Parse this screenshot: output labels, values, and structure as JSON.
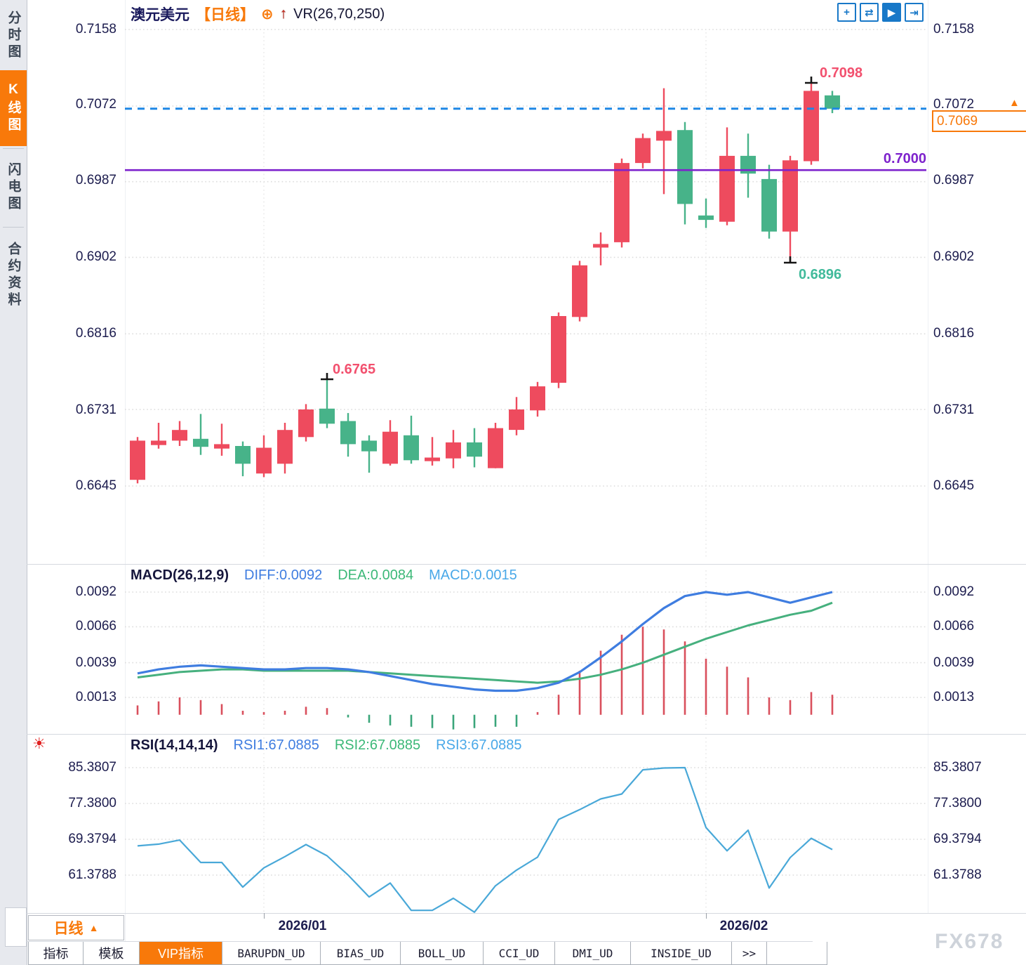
{
  "header": {
    "symbol": "澳元美元",
    "period_tag": "【日线】",
    "plus_glyph": "⊕",
    "arrow_glyph": "↑",
    "indicator": "VR(26,70,250)"
  },
  "toolbar": {
    "buttons": [
      {
        "name": "pan-crosshair",
        "glyph": "+"
      },
      {
        "name": "compress-axis",
        "glyph": "⇄"
      },
      {
        "name": "auto-play-scale",
        "glyph": "▶"
      },
      {
        "name": "shift-right",
        "glyph": "⇥"
      }
    ]
  },
  "sidebar": {
    "tabs": [
      {
        "label": "分时图",
        "active": false
      },
      {
        "label": "K线图",
        "active": true
      },
      {
        "label": "闪电图",
        "active": false
      },
      {
        "label": "合约资料",
        "active": false
      }
    ]
  },
  "main_chart": {
    "y_axis_labels": [
      "0.7158",
      "0.7072",
      "0.6987",
      "0.6902",
      "0.6816",
      "0.6731",
      "0.6645"
    ],
    "annotations": {
      "marked_high": "0.7098",
      "marked_low": "0.6896",
      "swing_high": "0.6765",
      "hline_label": "0.7000"
    },
    "price_box": {
      "value": "0.7069",
      "arrow": "▲"
    }
  },
  "macd_panel": {
    "title": "MACD(26,12,9)",
    "diff_label": "DIFF:0.0092",
    "dea_label": "DEA:0.0084",
    "macd_label": "MACD:0.0015",
    "y_axis_labels": [
      "0.0092",
      "0.0066",
      "0.0039",
      "0.0013"
    ]
  },
  "rsi_panel": {
    "icon_glyph": "☀",
    "title": "RSI(14,14,14)",
    "rsi1_label": "RSI1:67.0885",
    "rsi2_label": "RSI2:67.0885",
    "rsi3_label": "RSI3:67.0885",
    "y_axis_labels": [
      "85.3807",
      "77.3800",
      "69.3794",
      "61.3788"
    ]
  },
  "x_axis": {
    "period_label": "日线",
    "period_arrow": "▲",
    "labels": [
      "2026/01",
      "2026/02"
    ]
  },
  "bottom_tabs": {
    "tabs": [
      "指标",
      "模板",
      "VIP指标",
      "BARUPDN_UD",
      "BIAS_UD",
      "BOLL_UD",
      "CCI_UD",
      "DMI_UD",
      "INSIDE_UD"
    ],
    "more": ">>"
  },
  "watermark": {
    "text": "FX678"
  },
  "colors": {
    "up_candle": "#ee4b5e",
    "down_candle": "#47b389",
    "accent_orange": "#f8790a",
    "toolbar_blue": "#1878c8",
    "current_price_dash": "#1e87e5",
    "support_line_purple": "#7d22cc",
    "diff_line": "#3f7de0",
    "dea_line": "#46b07e",
    "rsi_line": "#49a8d8",
    "grid": "#dcdcdc",
    "axis_text": "#1c1c4e"
  },
  "chart_data": [
    {
      "type": "candlestick",
      "title": "澳元美元 日线 (AUD/USD daily)",
      "y_ticks": [
        0.7158,
        0.7072,
        0.6987,
        0.6902,
        0.6816,
        0.6731,
        0.6645
      ],
      "x_labels": [
        "2026/01",
        "2026/02"
      ],
      "month_boundary_indices": [
        6,
        27
      ],
      "current_price": 0.7069,
      "support_line": 0.7,
      "marked_high": {
        "index": 32,
        "value": 0.7098
      },
      "marked_low": {
        "index": 31,
        "value": 0.6896
      },
      "marked_swing_high": {
        "index": 9,
        "value": 0.6765
      },
      "ohlc": [
        [
          0.6652,
          0.67,
          0.6648,
          0.6696
        ],
        [
          0.6691,
          0.6716,
          0.6687,
          0.6696
        ],
        [
          0.6696,
          0.6718,
          0.669,
          0.6708
        ],
        [
          0.6698,
          0.6726,
          0.668,
          0.6689
        ],
        [
          0.6687,
          0.6715,
          0.6679,
          0.6692
        ],
        [
          0.669,
          0.6695,
          0.6656,
          0.667
        ],
        [
          0.6659,
          0.6702,
          0.6655,
          0.6688
        ],
        [
          0.667,
          0.6716,
          0.6659,
          0.6708
        ],
        [
          0.67,
          0.6737,
          0.6695,
          0.6731
        ],
        [
          0.6732,
          0.6765,
          0.671,
          0.6715
        ],
        [
          0.6718,
          0.6727,
          0.6678,
          0.6692
        ],
        [
          0.6696,
          0.6702,
          0.666,
          0.6684
        ],
        [
          0.667,
          0.6719,
          0.6668,
          0.6706
        ],
        [
          0.6702,
          0.6724,
          0.667,
          0.6674
        ],
        [
          0.6673,
          0.67,
          0.6668,
          0.6677
        ],
        [
          0.6676,
          0.6708,
          0.6665,
          0.6694
        ],
        [
          0.6694,
          0.671,
          0.6666,
          0.6678
        ],
        [
          0.6665,
          0.6716,
          0.6665,
          0.671
        ],
        [
          0.6708,
          0.6745,
          0.6702,
          0.6731
        ],
        [
          0.673,
          0.6762,
          0.6723,
          0.6757
        ],
        [
          0.6761,
          0.684,
          0.6755,
          0.6836
        ],
        [
          0.6835,
          0.6898,
          0.683,
          0.6893
        ],
        [
          0.6913,
          0.693,
          0.6893,
          0.6917
        ],
        [
          0.6919,
          0.7013,
          0.6913,
          0.7008
        ],
        [
          0.7008,
          0.7041,
          0.7002,
          0.7036
        ],
        [
          0.7033,
          0.7092,
          0.6973,
          0.7044
        ],
        [
          0.7045,
          0.7054,
          0.6939,
          0.6962
        ],
        [
          0.6949,
          0.6968,
          0.6935,
          0.6944
        ],
        [
          0.6942,
          0.7048,
          0.6938,
          0.7016
        ],
        [
          0.7016,
          0.7041,
          0.6969,
          0.6996
        ],
        [
          0.699,
          0.7006,
          0.6923,
          0.6931
        ],
        [
          0.6931,
          0.7016,
          0.6896,
          0.7011
        ],
        [
          0.701,
          0.7098,
          0.7006,
          0.7089
        ],
        [
          0.7084,
          0.7089,
          0.7064,
          0.7069
        ]
      ]
    },
    {
      "type": "macd",
      "title": "MACD(26,12,9)",
      "y_ticks": [
        0.0092,
        0.0066,
        0.0039,
        0.0013
      ],
      "diff": [
        0.0031,
        0.0034,
        0.0036,
        0.0037,
        0.0036,
        0.0035,
        0.0034,
        0.0034,
        0.0035,
        0.0035,
        0.0034,
        0.0032,
        0.0029,
        0.0026,
        0.0023,
        0.0021,
        0.0019,
        0.0018,
        0.0018,
        0.002,
        0.0024,
        0.0032,
        0.0043,
        0.0055,
        0.0068,
        0.008,
        0.0089,
        0.0092,
        0.009,
        0.0092,
        0.0088,
        0.0084,
        0.0088,
        0.0092
      ],
      "dea": [
        0.0028,
        0.003,
        0.0032,
        0.0033,
        0.0034,
        0.0034,
        0.0033,
        0.0033,
        0.0033,
        0.0033,
        0.0033,
        0.0032,
        0.0031,
        0.003,
        0.0029,
        0.0028,
        0.0027,
        0.0026,
        0.0025,
        0.0024,
        0.0025,
        0.0027,
        0.003,
        0.0034,
        0.0039,
        0.0045,
        0.0051,
        0.0057,
        0.0062,
        0.0067,
        0.0071,
        0.0075,
        0.0078,
        0.0084
      ],
      "hist": [
        0.0007,
        0.001,
        0.0013,
        0.0011,
        0.0008,
        0.0003,
        0.0002,
        0.0003,
        0.0006,
        0.0005,
        -0.0002,
        -0.0006,
        -0.0008,
        -0.0009,
        -0.001,
        -0.0011,
        -0.001,
        -0.0009,
        -0.0009,
        0.0002,
        0.0015,
        0.0033,
        0.0048,
        0.006,
        0.0066,
        0.0064,
        0.0055,
        0.0042,
        0.0036,
        0.0028,
        0.0013,
        0.0011,
        0.0017,
        0.0015
      ]
    },
    {
      "type": "line",
      "title": "RSI(14,14,14)",
      "y_ticks": [
        85.3807,
        77.38,
        69.3794,
        61.3788
      ],
      "rsi": [
        67.9,
        68.3,
        69.2,
        64.2,
        64.2,
        58.7,
        63.0,
        65.5,
        68.2,
        65.7,
        61.4,
        56.5,
        59.6,
        53.5,
        53.5,
        56.2,
        53.1,
        59.0,
        62.5,
        65.4,
        73.8,
        76.0,
        78.4,
        79.5,
        84.9,
        85.3,
        85.38,
        72.0,
        66.8,
        71.4,
        58.5,
        65.3,
        69.6,
        67.09
      ]
    }
  ]
}
